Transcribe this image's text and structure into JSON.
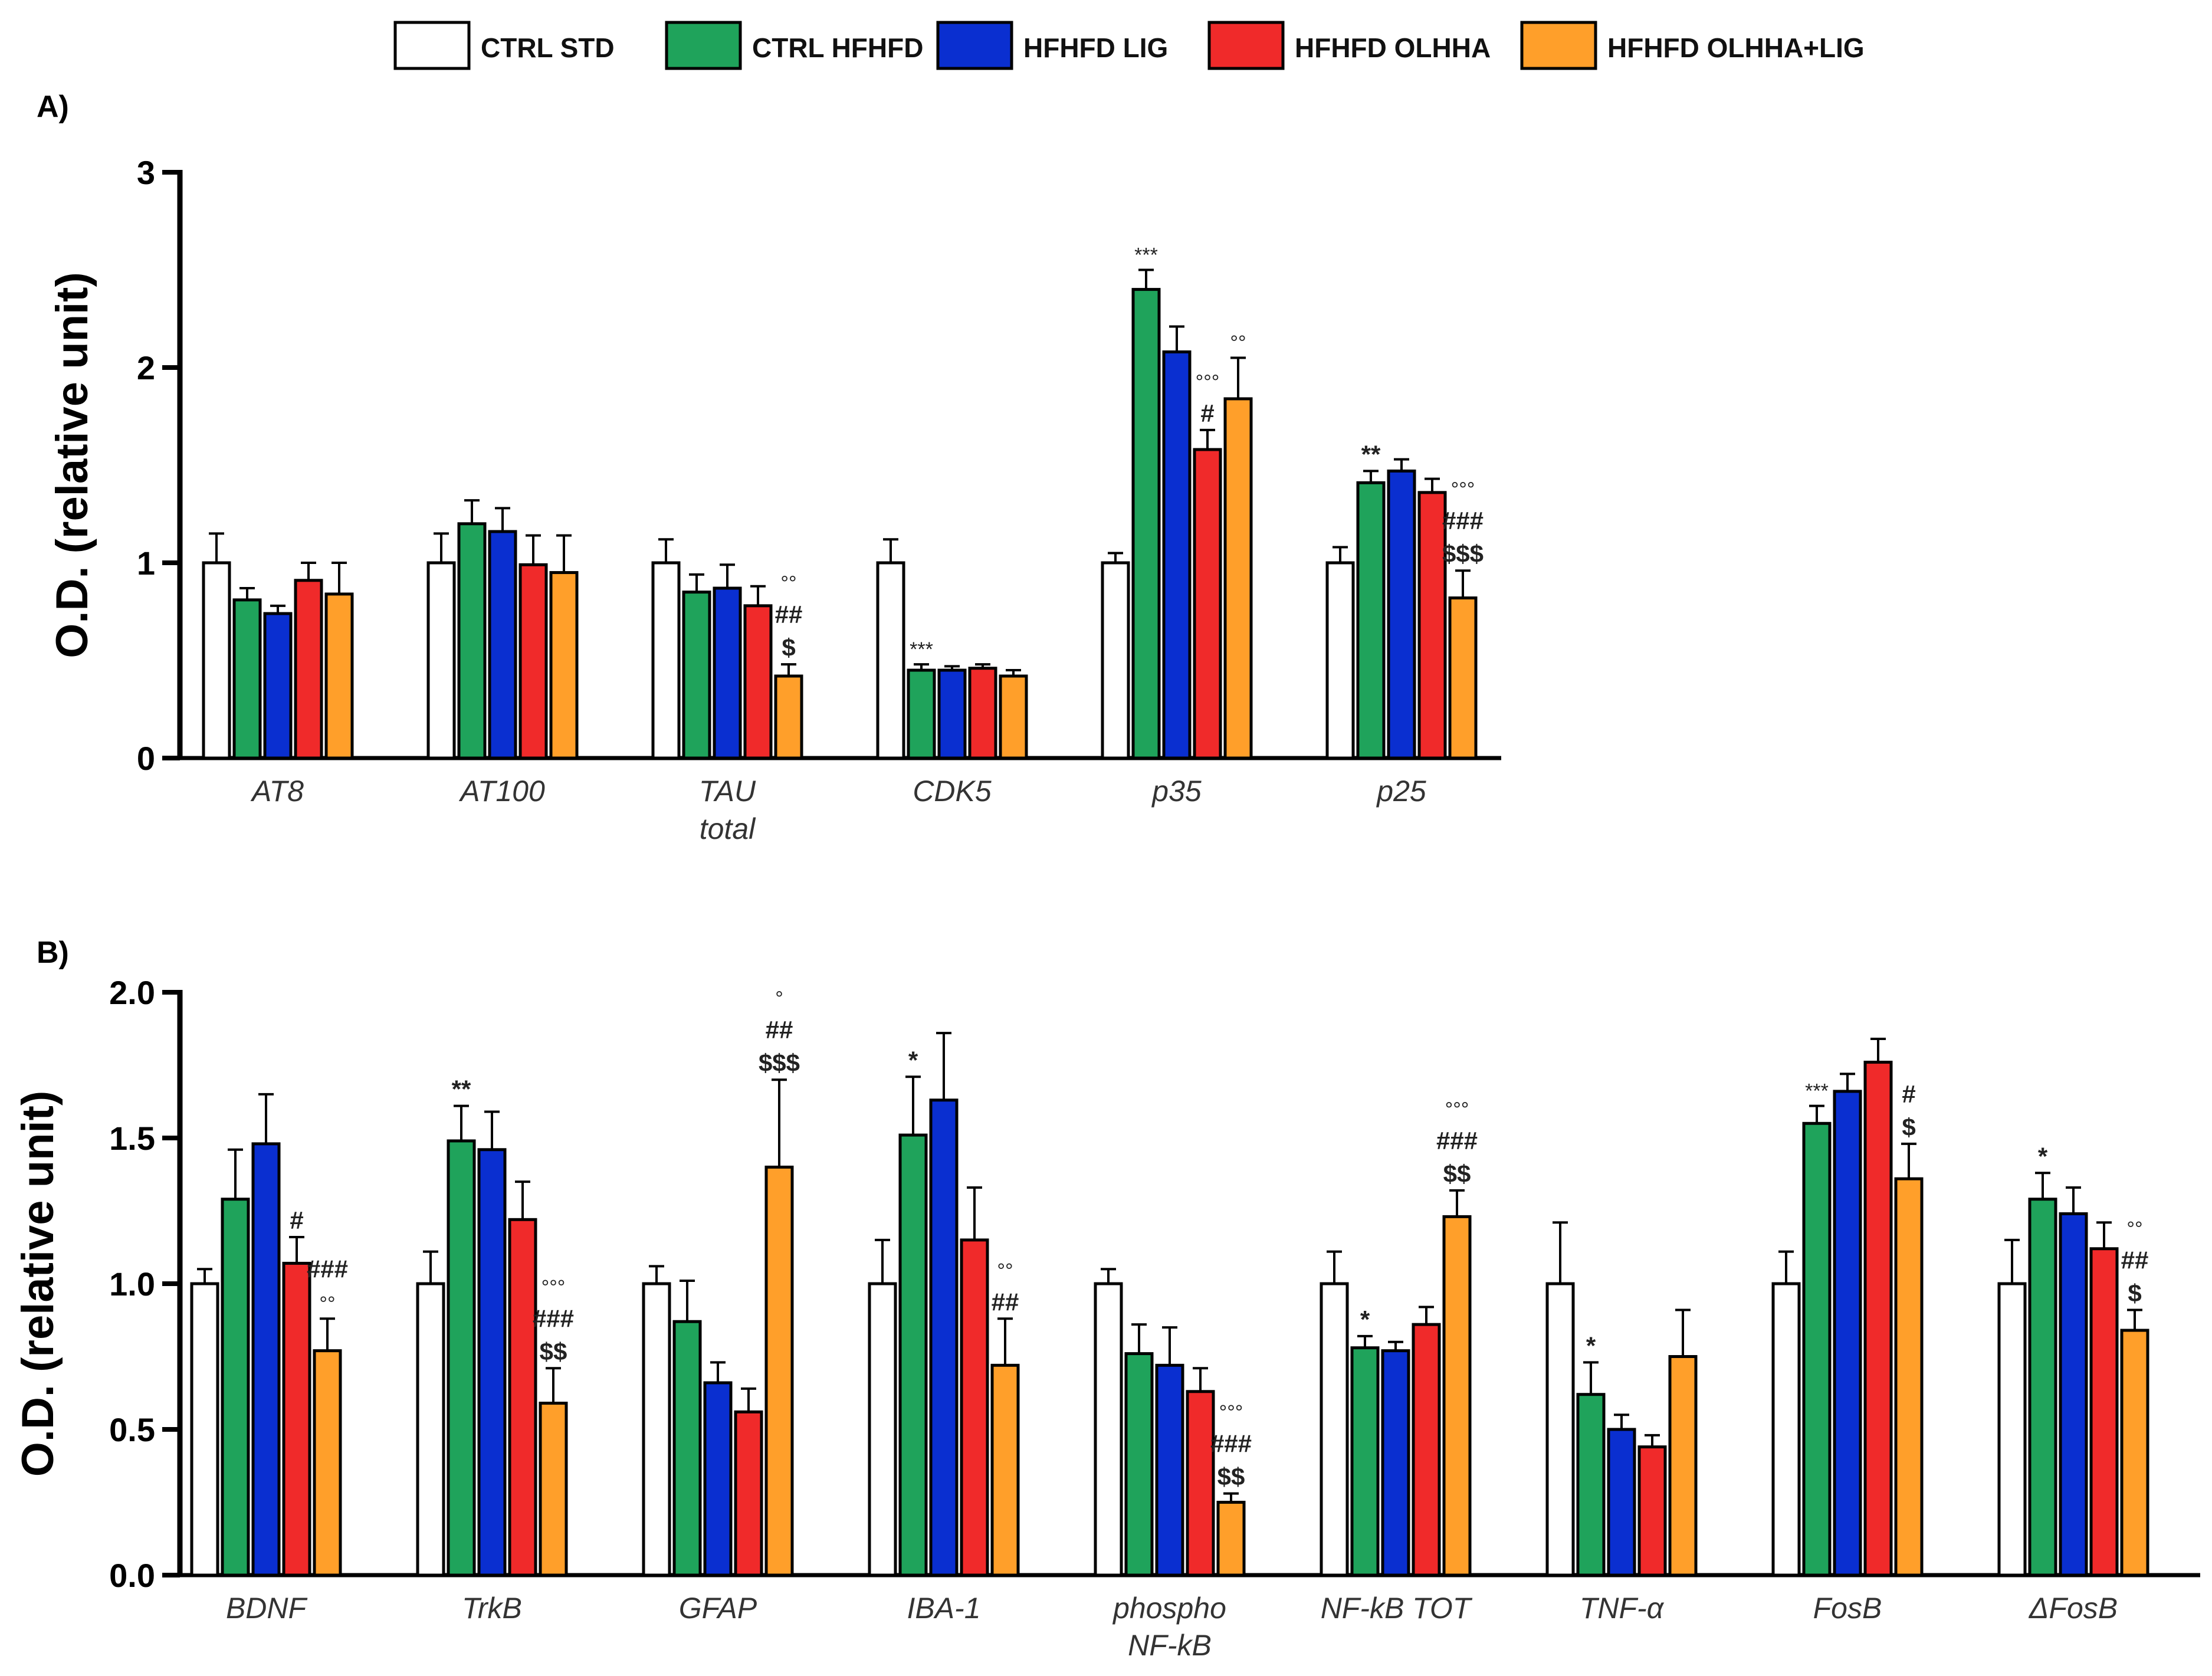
{
  "colors": {
    "CTRL STD": "#ffffff",
    "CTRL HFHFD": "#1fa35b",
    "HFHFD LIG": "#0a2fd0",
    "HFHFD OLHHA": "#f02a2a",
    "HFHFD OLHHA+LIG": "#ff9f2a"
  },
  "legend": [
    "CTRL STD",
    "CTRL HFHFD",
    "HFHFD LIG",
    "HFHFD OLHHA",
    "HFHFD OLHHA+LIG"
  ],
  "chart_data": [
    {
      "panel": "A)",
      "type": "bar",
      "ylabel": "O.D. (relative unit)",
      "ylim": [
        0,
        3
      ],
      "yticks": [
        "0",
        "1",
        "2",
        "3"
      ],
      "categories": [
        "AT8",
        "AT100",
        "TAU total",
        "CDK5",
        "p35",
        "p25"
      ],
      "series": [
        {
          "name": "CTRL STD",
          "values": [
            1.0,
            1.0,
            1.0,
            1.0,
            1.0,
            1.0
          ],
          "errors": [
            0.15,
            0.15,
            0.12,
            0.12,
            0.05,
            0.08
          ]
        },
        {
          "name": "CTRL HFHFD",
          "values": [
            0.81,
            1.2,
            0.85,
            0.45,
            2.4,
            1.41
          ],
          "errors": [
            0.06,
            0.12,
            0.09,
            0.03,
            0.1,
            0.06
          ]
        },
        {
          "name": "HFHFD LIG",
          "values": [
            0.74,
            1.16,
            0.87,
            0.45,
            2.08,
            1.47
          ],
          "errors": [
            0.04,
            0.12,
            0.12,
            0.02,
            0.13,
            0.06
          ]
        },
        {
          "name": "HFHFD OLHHA",
          "values": [
            0.91,
            0.99,
            0.78,
            0.46,
            1.58,
            1.36
          ],
          "errors": [
            0.09,
            0.15,
            0.1,
            0.02,
            0.1,
            0.07
          ]
        },
        {
          "name": "HFHFD OLHHA+LIG",
          "values": [
            0.84,
            0.95,
            0.42,
            0.42,
            1.84,
            0.82
          ],
          "errors": [
            0.16,
            0.19,
            0.06,
            0.03,
            0.21,
            0.14
          ]
        }
      ],
      "annotations": [
        {
          "category": 2,
          "series": 4,
          "lines": [
            "°°",
            "##",
            "$"
          ]
        },
        {
          "category": 3,
          "series": 1,
          "lines": [
            "***"
          ]
        },
        {
          "category": 4,
          "series": 1,
          "lines": [
            "***"
          ]
        },
        {
          "category": 4,
          "series": 3,
          "lines": [
            "°°°",
            "#"
          ]
        },
        {
          "category": 4,
          "series": 4,
          "lines": [
            "°°"
          ]
        },
        {
          "category": 5,
          "series": 1,
          "lines": [
            "**"
          ]
        },
        {
          "category": 5,
          "series": 4,
          "lines": [
            "°°°",
            "###",
            "$$$"
          ]
        }
      ]
    },
    {
      "panel": "B)",
      "type": "bar",
      "ylabel": "O.D. (relative unit)",
      "ylim": [
        0,
        2
      ],
      "yticks": [
        "0.0",
        "0.5",
        "1.0",
        "1.5",
        "2.0"
      ],
      "categories": [
        "BDNF",
        "TrkB",
        "GFAP",
        "IBA-1",
        "phospho NF-kB",
        "NF-kB TOT",
        "TNF-α",
        "FosB",
        "ΔFosB"
      ],
      "series": [
        {
          "name": "CTRL STD",
          "values": [
            1.0,
            1.0,
            1.0,
            1.0,
            1.0,
            1.0,
            1.0,
            1.0,
            1.0
          ],
          "errors": [
            0.05,
            0.11,
            0.06,
            0.15,
            0.05,
            0.11,
            0.21,
            0.11,
            0.15
          ]
        },
        {
          "name": "CTRL HFHFD",
          "values": [
            1.29,
            1.49,
            0.87,
            1.51,
            0.76,
            0.78,
            0.62,
            1.55,
            1.29
          ],
          "errors": [
            0.17,
            0.12,
            0.14,
            0.2,
            0.1,
            0.04,
            0.11,
            0.06,
            0.09
          ]
        },
        {
          "name": "HFHFD LIG",
          "values": [
            1.48,
            1.46,
            0.66,
            1.63,
            0.72,
            0.77,
            0.5,
            1.66,
            1.24
          ],
          "errors": [
            0.17,
            0.13,
            0.07,
            0.23,
            0.13,
            0.03,
            0.05,
            0.06,
            0.09
          ]
        },
        {
          "name": "HFHFD OLHHA",
          "values": [
            1.07,
            1.22,
            0.56,
            1.15,
            0.63,
            0.86,
            0.44,
            1.76,
            1.12
          ],
          "errors": [
            0.09,
            0.13,
            0.08,
            0.18,
            0.08,
            0.06,
            0.04,
            0.08,
            0.09
          ]
        },
        {
          "name": "HFHFD OLHHA+LIG",
          "values": [
            0.77,
            0.59,
            1.4,
            0.72,
            0.25,
            1.23,
            0.75,
            1.36,
            0.84
          ],
          "errors": [
            0.11,
            0.12,
            0.3,
            0.16,
            0.03,
            0.09,
            0.16,
            0.12,
            0.07
          ]
        }
      ],
      "annotations": [
        {
          "category": 0,
          "series": 3,
          "lines": [
            "#"
          ]
        },
        {
          "category": 0,
          "series": 4,
          "lines": [
            "###",
            "°°"
          ]
        },
        {
          "category": 1,
          "series": 1,
          "lines": [
            "**"
          ]
        },
        {
          "category": 1,
          "series": 4,
          "lines": [
            "°°°",
            "###",
            "$$"
          ]
        },
        {
          "category": 2,
          "series": 4,
          "lines": [
            "°",
            "##",
            "$$$"
          ]
        },
        {
          "category": 3,
          "series": 1,
          "lines": [
            "*"
          ]
        },
        {
          "category": 3,
          "series": 4,
          "lines": [
            "°°",
            "##"
          ]
        },
        {
          "category": 4,
          "series": 4,
          "lines": [
            "°°°",
            "###",
            "$$"
          ]
        },
        {
          "category": 5,
          "series": 1,
          "lines": [
            "*"
          ]
        },
        {
          "category": 5,
          "series": 4,
          "lines": [
            "°°°",
            "###",
            "$$"
          ]
        },
        {
          "category": 6,
          "series": 1,
          "lines": [
            "*"
          ]
        },
        {
          "category": 7,
          "series": 1,
          "lines": [
            "***"
          ]
        },
        {
          "category": 7,
          "series": 4,
          "lines": [
            "#",
            "$"
          ]
        },
        {
          "category": 8,
          "series": 1,
          "lines": [
            "*"
          ]
        },
        {
          "category": 8,
          "series": 4,
          "lines": [
            "°°",
            "##",
            "$"
          ]
        }
      ]
    }
  ]
}
